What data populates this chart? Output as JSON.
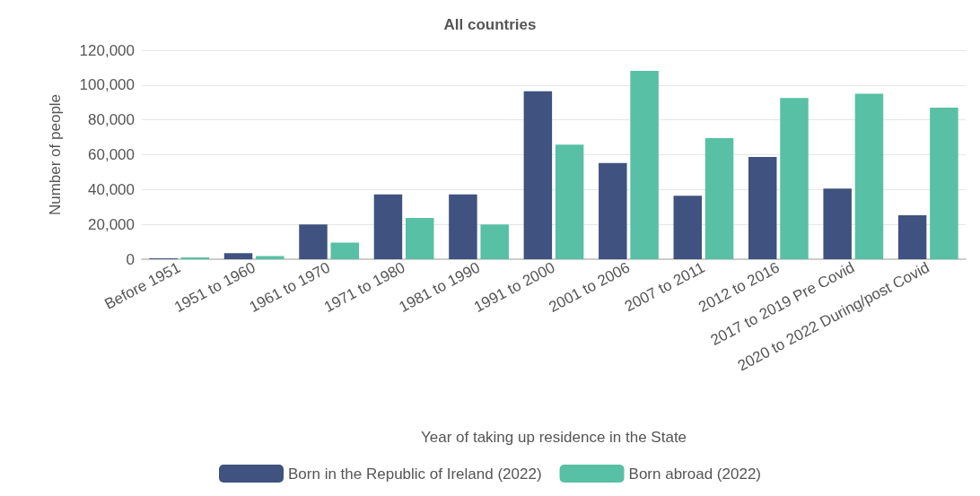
{
  "chart_data": {
    "type": "bar",
    "title": "All countries",
    "xlabel": "Year of taking up residence in the State",
    "ylabel": "Number of people",
    "categories": [
      "Before 1951",
      "1951 to 1960",
      "1961 to 1970",
      "1971 to 1980",
      "1981 to 1990",
      "1991 to 2000",
      "2001 to 2006",
      "2007 to 2011",
      "2012 to 2016",
      "2017 to 2019 Pre Covid",
      "2020 to 2022 During/post Covid"
    ],
    "series": [
      {
        "name": "Born in the Republic of Ireland (2022)",
        "color": "#3f5280",
        "values": [
          500,
          3500,
          19900,
          37200,
          37200,
          96400,
          55200,
          36400,
          58700,
          40600,
          25200
        ]
      },
      {
        "name": "Born abroad (2022)",
        "color": "#58c0a4",
        "values": [
          1000,
          1800,
          9500,
          23700,
          20000,
          65800,
          108100,
          69500,
          92600,
          95000,
          87100
        ]
      }
    ],
    "ylim": [
      0,
      120000
    ],
    "yticks": [
      0,
      {
        "value": 20000,
        "label": "20,000"
      },
      {
        "value": 40000,
        "label": "40,000"
      },
      {
        "value": 60000,
        "label": "60,000"
      },
      {
        "value": 80000,
        "label": "80,000"
      },
      {
        "value": 100000,
        "label": "100,000"
      },
      {
        "value": 120000,
        "label": "120,000"
      }
    ],
    "grid": "y",
    "legend": "bottom"
  }
}
